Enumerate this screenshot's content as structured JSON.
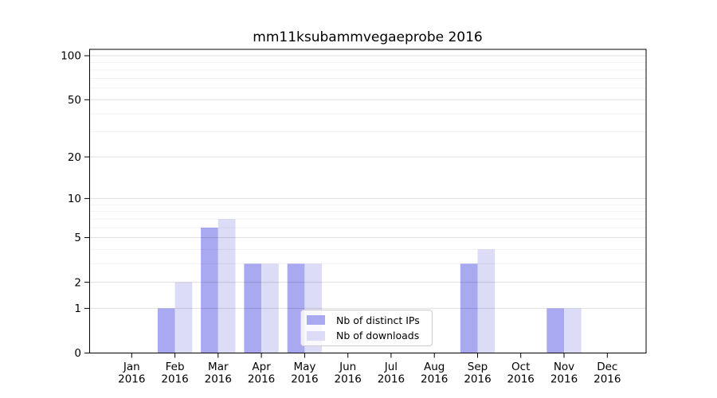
{
  "chart_data": {
    "type": "bar",
    "title": "mm11ksubammvegaeprobe 2016",
    "categories": [
      "Jan",
      "Feb",
      "Mar",
      "Apr",
      "May",
      "Jun",
      "Jul",
      "Aug",
      "Sep",
      "Oct",
      "Nov",
      "Dec"
    ],
    "year_label": "2016",
    "series": [
      {
        "name": "Nb of distinct IPs",
        "color": "#a9a9f2",
        "values": [
          0,
          1,
          6,
          3,
          3,
          0,
          0,
          0,
          3,
          0,
          1,
          0
        ]
      },
      {
        "name": "Nb of downloads",
        "color": "#dcdcf6",
        "values": [
          0,
          2,
          7,
          3,
          3,
          0,
          0,
          0,
          4,
          0,
          1,
          0
        ]
      }
    ],
    "xlabel": "",
    "ylabel": "",
    "yscale": "log1p",
    "ylim": [
      0,
      110
    ],
    "yticks": [
      0,
      1,
      2,
      5,
      10,
      20,
      50,
      100
    ],
    "yticks_minor": [
      3,
      4,
      6,
      7,
      8,
      9,
      30,
      40,
      60,
      70,
      80,
      90
    ],
    "grid": true,
    "legend_position": "lower-center"
  },
  "legend": {
    "items": [
      {
        "label": "Nb of distinct IPs",
        "color": "#a9a9f2"
      },
      {
        "label": "Nb of downloads",
        "color": "#dcdcf6"
      }
    ]
  },
  "colors": {
    "spine": "#000000",
    "grid_major": "rgba(0,0,0,0.125)",
    "grid_minor": "rgba(0,0,0,0.055)"
  }
}
